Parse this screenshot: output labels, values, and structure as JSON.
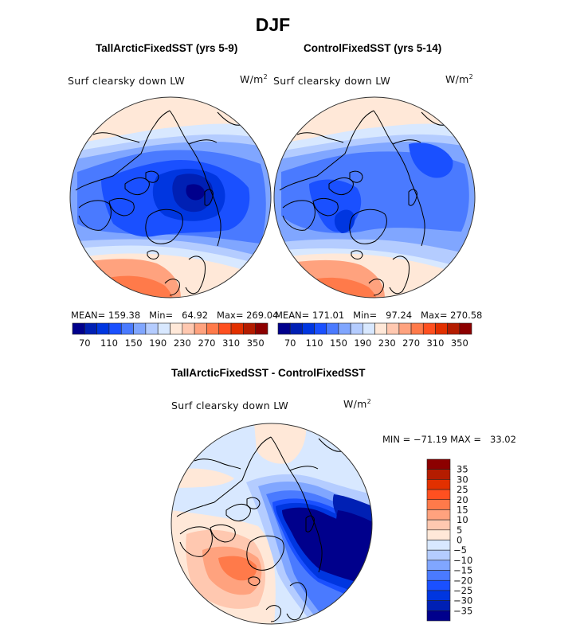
{
  "figure_title": "DJF",
  "panels": [
    {
      "title": "TallArcticFixedSST (yrs 5-9)",
      "variable": "Surf clearsky down LW",
      "units": "W/m",
      "units_sup": "2",
      "stats": "MEAN= 159.38   Min=   64.92   Max= 269.04"
    },
    {
      "title": "ControlFixedSST (yrs 5-14)",
      "variable": "Surf clearsky down LW",
      "units": "W/m",
      "units_sup": "2",
      "stats": "MEAN= 171.01   Min=   97.24   Max= 270.58"
    },
    {
      "title": "TallArcticFixedSST - ControlFixedSST",
      "variable": "Surf clearsky down LW",
      "units": "W/m",
      "units_sup": "2",
      "stats": "MIN = −71.19 MAX =   33.02"
    }
  ],
  "chart_data": [
    {
      "type": "heatmap",
      "title": "TallArcticFixedSST (yrs 5-9)",
      "projection": "north-polar-stereographic",
      "variable": "Surf clearsky down LW",
      "units": "W/m^2",
      "mean": 159.38,
      "min": 64.92,
      "max": 269.04,
      "colorbar": {
        "orientation": "horizontal",
        "levels": [
          70,
          90,
          110,
          130,
          150,
          170,
          190,
          210,
          230,
          250,
          270,
          290,
          310,
          330,
          350
        ],
        "tick_labels": [
          "70",
          "110",
          "150",
          "190",
          "230",
          "270",
          "310",
          "350"
        ],
        "colors": [
          "#00008c",
          "#0020b4",
          "#0036e0",
          "#1a50ff",
          "#4a7aff",
          "#80a6ff",
          "#b4ccff",
          "#d8e8ff",
          "#ffe8d8",
          "#ffc8b0",
          "#ffa27e",
          "#ff7a4a",
          "#ff5020",
          "#e23000",
          "#b41c00",
          "#8c0000"
        ]
      },
      "regions": [
        {
          "name": "north-pacific",
          "level_index": 8
        },
        {
          "name": "north-atlantic-europe",
          "level_index": 10
        },
        {
          "name": "north-america",
          "level_index": 5
        },
        {
          "name": "arctic-ocean",
          "level_index": 3
        },
        {
          "name": "siberia-core",
          "level_index": 1
        },
        {
          "name": "siberia-min",
          "level_index": 0
        },
        {
          "name": "greenland",
          "level_index": 3
        }
      ]
    },
    {
      "type": "heatmap",
      "title": "ControlFixedSST (yrs 5-14)",
      "projection": "north-polar-stereographic",
      "variable": "Surf clearsky down LW",
      "units": "W/m^2",
      "mean": 171.01,
      "min": 97.24,
      "max": 270.58,
      "colorbar": {
        "orientation": "horizontal",
        "levels": [
          70,
          90,
          110,
          130,
          150,
          170,
          190,
          210,
          230,
          250,
          270,
          290,
          310,
          330,
          350
        ],
        "tick_labels": [
          "70",
          "110",
          "150",
          "190",
          "230",
          "270",
          "310",
          "350"
        ],
        "colors": [
          "#00008c",
          "#0020b4",
          "#0036e0",
          "#1a50ff",
          "#4a7aff",
          "#80a6ff",
          "#b4ccff",
          "#d8e8ff",
          "#ffe8d8",
          "#ffc8b0",
          "#ffa27e",
          "#ff7a4a",
          "#ff5020",
          "#e23000",
          "#b41c00",
          "#8c0000"
        ]
      },
      "regions": [
        {
          "name": "north-pacific",
          "level_index": 8
        },
        {
          "name": "north-atlantic-europe",
          "level_index": 10
        },
        {
          "name": "north-america",
          "level_index": 5
        },
        {
          "name": "arctic-ocean",
          "level_index": 4
        },
        {
          "name": "siberia-core",
          "level_index": 3
        },
        {
          "name": "greenland",
          "level_index": 2
        }
      ]
    },
    {
      "type": "heatmap",
      "title": "TallArcticFixedSST - ControlFixedSST",
      "projection": "north-polar-stereographic",
      "variable": "Surf clearsky down LW",
      "units": "W/m^2",
      "min": -71.19,
      "max": 33.02,
      "colorbar": {
        "orientation": "vertical",
        "levels": [
          -35,
          -30,
          -25,
          -20,
          -15,
          -10,
          -5,
          0,
          5,
          10,
          15,
          20,
          25,
          30,
          35
        ],
        "tick_labels": [
          "35",
          "30",
          "25",
          "20",
          "15",
          "10",
          "5",
          "0",
          "−5",
          "−10",
          "−15",
          "−20",
          "−25",
          "−30",
          "−35"
        ],
        "colors": [
          "#00008c",
          "#0020b4",
          "#0036e0",
          "#1a50ff",
          "#4a7aff",
          "#80a6ff",
          "#b4ccff",
          "#d8e8ff",
          "#ffe8d8",
          "#ffc8b0",
          "#ffa27e",
          "#ff7a4a",
          "#ff5020",
          "#e23000",
          "#b41c00",
          "#8c0000"
        ]
      },
      "regions": [
        {
          "name": "background",
          "level_index": 7
        },
        {
          "name": "north-pacific",
          "level_index": 8
        },
        {
          "name": "north-atlantic",
          "level_index": 9
        },
        {
          "name": "greenland-baffin",
          "level_index": 11
        },
        {
          "name": "eurasian-arctic-siberia",
          "level_index": 0
        },
        {
          "name": "scandinavia",
          "level_index": 5
        }
      ]
    }
  ]
}
